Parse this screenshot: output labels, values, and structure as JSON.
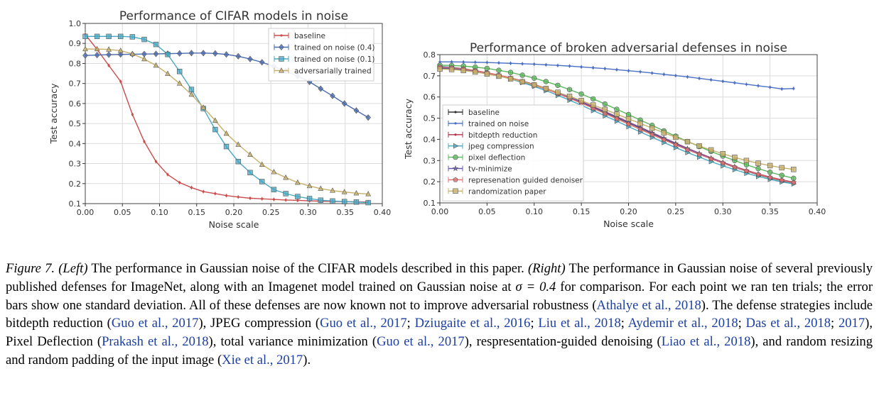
{
  "charts": [
    {
      "type": "line",
      "title": "Performance of CIFAR models in noise",
      "xlabel": "Noise scale",
      "ylabel": "Test accuracy",
      "xlim": [
        0.0,
        0.4
      ],
      "ylim": [
        0.1,
        1.0
      ],
      "x_ticks": [
        "0.00",
        "0.05",
        "0.10",
        "0.15",
        "0.20",
        "0.25",
        "0.30",
        "0.35",
        "0.40"
      ],
      "y_ticks": [
        "0.1",
        "0.2",
        "0.3",
        "0.4",
        "0.5",
        "0.6",
        "0.7",
        "0.8",
        "0.9",
        "1.0"
      ],
      "grid": true,
      "legend_position": "top-right",
      "x": [
        0.0,
        0.0159,
        0.0317,
        0.0476,
        0.0635,
        0.0794,
        0.0952,
        0.111,
        0.127,
        0.143,
        0.159,
        0.175,
        0.19,
        0.206,
        0.222,
        0.238,
        0.254,
        0.27,
        0.286,
        0.302,
        0.317,
        0.333,
        0.349,
        0.365,
        0.381
      ],
      "series": [
        {
          "name": "baseline",
          "color": "#cc4c4c",
          "marker": "line",
          "values": [
            0.945,
            0.87,
            0.79,
            0.71,
            0.545,
            0.41,
            0.31,
            0.245,
            0.205,
            0.18,
            0.16,
            0.15,
            0.14,
            0.133,
            0.127,
            0.124,
            0.121,
            0.118,
            0.116,
            0.114,
            0.112,
            0.111,
            0.11,
            0.109,
            0.108
          ]
        },
        {
          "name": "trained on noise (0.4)",
          "color": "#4a6bb0",
          "marker": "diamond",
          "values": [
            0.84,
            0.842,
            0.844,
            0.845,
            0.846,
            0.847,
            0.848,
            0.849,
            0.85,
            0.852,
            0.852,
            0.85,
            0.845,
            0.836,
            0.822,
            0.806,
            0.785,
            0.762,
            0.737,
            0.708,
            0.674,
            0.638,
            0.6,
            0.565,
            0.53
          ]
        },
        {
          "name": "trained on noise (0.1)",
          "color": "#4aa8c4",
          "marker": "square",
          "values": [
            0.935,
            0.935,
            0.935,
            0.935,
            0.933,
            0.92,
            0.895,
            0.845,
            0.76,
            0.67,
            0.575,
            0.47,
            0.385,
            0.31,
            0.255,
            0.21,
            0.17,
            0.15,
            0.135,
            0.125,
            0.117,
            0.113,
            0.11,
            0.108,
            0.105
          ]
        },
        {
          "name": "adversarially trained",
          "color": "#c8b06b",
          "marker": "triangle",
          "values": [
            0.872,
            0.872,
            0.87,
            0.864,
            0.848,
            0.822,
            0.79,
            0.749,
            0.7,
            0.645,
            0.58,
            0.515,
            0.45,
            0.395,
            0.345,
            0.295,
            0.258,
            0.23,
            0.205,
            0.188,
            0.175,
            0.165,
            0.158,
            0.152,
            0.148
          ]
        }
      ]
    },
    {
      "type": "line",
      "title": "Performance of broken adversarial defenses in noise",
      "xlabel": "Noise scale",
      "ylabel": "Test accuracy",
      "xlim": [
        0.0,
        0.4
      ],
      "ylim": [
        0.1,
        0.8
      ],
      "x_ticks": [
        "0.00",
        "0.05",
        "0.10",
        "0.15",
        "0.20",
        "0.25",
        "0.30",
        "0.35",
        "0.40"
      ],
      "y_ticks": [
        "0.1",
        "0.2",
        "0.3",
        "0.4",
        "0.5",
        "0.6",
        "0.7",
        "0.8"
      ],
      "grid": true,
      "legend_position": "lower-left",
      "x": [
        0.0,
        0.0125,
        0.025,
        0.0375,
        0.05,
        0.0625,
        0.075,
        0.0875,
        0.1,
        0.1125,
        0.125,
        0.1375,
        0.15,
        0.1625,
        0.175,
        0.1875,
        0.2,
        0.2125,
        0.225,
        0.2375,
        0.25,
        0.2625,
        0.275,
        0.2875,
        0.3,
        0.3125,
        0.325,
        0.3375,
        0.35,
        0.3625,
        0.375
      ],
      "series": [
        {
          "name": "baseline",
          "color": "#333333",
          "marker": "line",
          "values": [
            0.735,
            0.732,
            0.727,
            0.719,
            0.71,
            0.699,
            0.686,
            0.671,
            0.655,
            0.637,
            0.617,
            0.596,
            0.574,
            0.551,
            0.527,
            0.503,
            0.478,
            0.453,
            0.428,
            0.403,
            0.378,
            0.354,
            0.331,
            0.309,
            0.288,
            0.268,
            0.25,
            0.233,
            0.218,
            0.205,
            0.195
          ]
        },
        {
          "name": "trained on noise",
          "color": "#4a6fc4",
          "marker": "line",
          "values": [
            0.766,
            0.766,
            0.765,
            0.764,
            0.763,
            0.761,
            0.759,
            0.757,
            0.755,
            0.752,
            0.749,
            0.746,
            0.742,
            0.738,
            0.734,
            0.729,
            0.724,
            0.719,
            0.713,
            0.707,
            0.701,
            0.695,
            0.688,
            0.681,
            0.674,
            0.667,
            0.66,
            0.653,
            0.646,
            0.638,
            0.64
          ]
        },
        {
          "name": "bitdepth reduction",
          "color": "#b03048",
          "marker": "line",
          "values": [
            0.74,
            0.737,
            0.732,
            0.724,
            0.715,
            0.703,
            0.69,
            0.675,
            0.659,
            0.641,
            0.621,
            0.6,
            0.578,
            0.555,
            0.531,
            0.507,
            0.482,
            0.457,
            0.432,
            0.407,
            0.382,
            0.358,
            0.335,
            0.313,
            0.292,
            0.272,
            0.254,
            0.237,
            0.222,
            0.209,
            0.198
          ]
        },
        {
          "name": "jpeg compression",
          "color": "#4aa8c4",
          "marker": "triangle-right",
          "values": [
            0.745,
            0.741,
            0.734,
            0.725,
            0.714,
            0.7,
            0.685,
            0.668,
            0.65,
            0.63,
            0.608,
            0.585,
            0.561,
            0.536,
            0.511,
            0.486,
            0.46,
            0.435,
            0.41,
            0.385,
            0.361,
            0.338,
            0.316,
            0.295,
            0.275,
            0.257,
            0.24,
            0.225,
            0.211,
            0.199,
            0.19
          ]
        },
        {
          "name": "pixel deflection",
          "color": "#5cb85c",
          "marker": "circle",
          "values": [
            0.75,
            0.749,
            0.746,
            0.741,
            0.735,
            0.726,
            0.716,
            0.703,
            0.689,
            0.673,
            0.655,
            0.635,
            0.614,
            0.591,
            0.567,
            0.542,
            0.517,
            0.491,
            0.466,
            0.44,
            0.415,
            0.39,
            0.366,
            0.343,
            0.321,
            0.3,
            0.28,
            0.262,
            0.245,
            0.23,
            0.216
          ]
        },
        {
          "name": "tv-minimize",
          "color": "#6a5bb0",
          "marker": "star",
          "values": [
            0.738,
            0.735,
            0.73,
            0.722,
            0.713,
            0.701,
            0.688,
            0.673,
            0.657,
            0.639,
            0.619,
            0.598,
            0.576,
            0.553,
            0.529,
            0.505,
            0.48,
            0.455,
            0.43,
            0.405,
            0.38,
            0.356,
            0.333,
            0.311,
            0.29,
            0.27,
            0.252,
            0.235,
            0.22,
            0.207,
            0.197
          ]
        },
        {
          "name": "represenation guided denoiser",
          "color": "#e07070",
          "marker": "pentagon",
          "values": [
            0.742,
            0.739,
            0.733,
            0.725,
            0.715,
            0.703,
            0.689,
            0.673,
            0.656,
            0.637,
            0.616,
            0.594,
            0.571,
            0.547,
            0.522,
            0.497,
            0.472,
            0.447,
            0.422,
            0.398,
            0.374,
            0.351,
            0.329,
            0.308,
            0.288,
            0.269,
            0.251,
            0.235,
            0.22,
            0.207,
            0.196
          ]
        },
        {
          "name": "randomization paper",
          "color": "#c8b06b",
          "marker": "square",
          "values": [
            0.732,
            0.73,
            0.725,
            0.718,
            0.709,
            0.698,
            0.686,
            0.672,
            0.657,
            0.64,
            0.622,
            0.603,
            0.583,
            0.562,
            0.541,
            0.519,
            0.497,
            0.475,
            0.453,
            0.431,
            0.41,
            0.389,
            0.369,
            0.35,
            0.332,
            0.315,
            0.3,
            0.287,
            0.276,
            0.266,
            0.258
          ]
        }
      ]
    }
  ],
  "caption": {
    "fig": "Figure 7.",
    "left_tag": "(Left)",
    "s1": "The performance in Gaussian noise of the CIFAR models described in this paper.",
    "right_tag": "(Right)",
    "s2": "The performance in Gaussian noise of several previously published defenses for ImageNet, along with an Imagenet model trained on Gaussian noise at",
    "sigma": "σ = 0.4",
    "s3": "for comparison. For each point we ran ten trials; the error bars show one standard deviation. All of these defenses are now known not to improve adversarial robustness (",
    "c_athalye": "Athalye et al., 2018",
    "s4": "). The defense strategies include bitdepth reduction (",
    "c_guo1": "Guo et al., 2017",
    "s5": "), JPEG compression (",
    "c_guo2": "Guo et al., 2017",
    "sep1": "; ",
    "c_dziugaite": "Dziugaite et al., 2016",
    "sep2": "; ",
    "c_liu": "Liu et al., 2018",
    "sep3": "; ",
    "c_aydemir": "Aydemir et al., 2018",
    "sep4": "; ",
    "c_das": "Das et al., 2018",
    "sep5": "; ",
    "c_das2": "2017",
    "s6": "), Pixel Deflection (",
    "c_prakash": "Prakash et al., 2018",
    "s7": "), total variance minimization (",
    "c_guo3": "Guo et al., 2017",
    "s8": "), respresentation-guided denoising (",
    "c_liao": "Liao et al., 2018",
    "s9": "), and random resizing and random padding of the input image (",
    "c_xie": "Xie et al., 2017",
    "s10": ")."
  }
}
